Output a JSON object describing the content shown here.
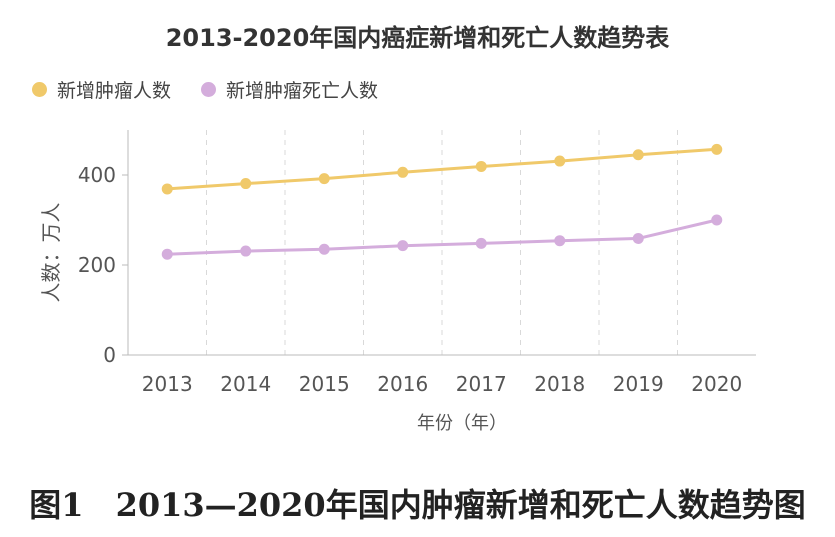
{
  "chart_data": {
    "type": "line",
    "title": "2013-2020年国内癌症新增和死亡人数趋势表",
    "xlabel": "年份（年）",
    "ylabel": "人数：万人",
    "categories": [
      "2013",
      "2014",
      "2015",
      "2016",
      "2017",
      "2018",
      "2019",
      "2020"
    ],
    "ylim": [
      0,
      500
    ],
    "yticks": [
      "0",
      "200",
      "400"
    ],
    "grid": "vertical dashed between categories",
    "legend_position": "top-left",
    "series": [
      {
        "name": "新增肿瘤人数",
        "color": "#f0c96a",
        "values": [
          369,
          381,
          392,
          406,
          419,
          431,
          445,
          457
        ]
      },
      {
        "name": "新增肿瘤死亡人数",
        "color": "#d4addc",
        "values": [
          224,
          231,
          235,
          243,
          248,
          254,
          259,
          300
        ]
      }
    ]
  },
  "caption": "图1　2013—2020年国内肿瘤新增和死亡人数趋势图"
}
